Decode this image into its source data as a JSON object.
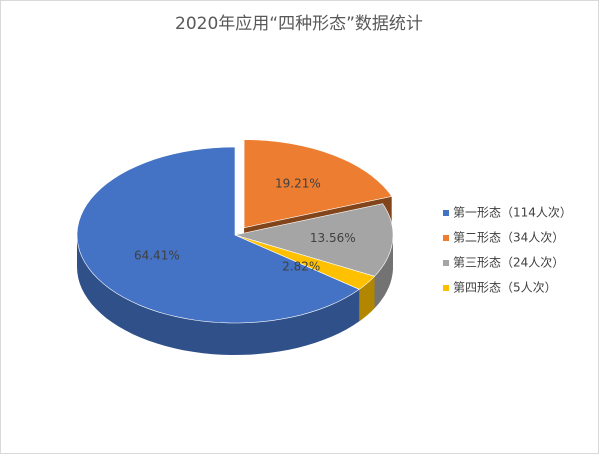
{
  "chart_data": {
    "type": "pie3d",
    "title": "2020年应用“四种形态”数据统计",
    "categories": [
      "第一形态（114人次）",
      "第二形态（34人次）",
      "第三形态（24人次）",
      "第四形态（5人次）"
    ],
    "values": [
      64.41,
      19.21,
      13.56,
      2.82
    ],
    "value_labels": [
      "64.41%",
      "19.21%",
      "13.56%",
      "2.82%"
    ],
    "colors": [
      "#4472c4",
      "#ed7d31",
      "#a5a5a5",
      "#ffc000"
    ],
    "legend": "right"
  }
}
